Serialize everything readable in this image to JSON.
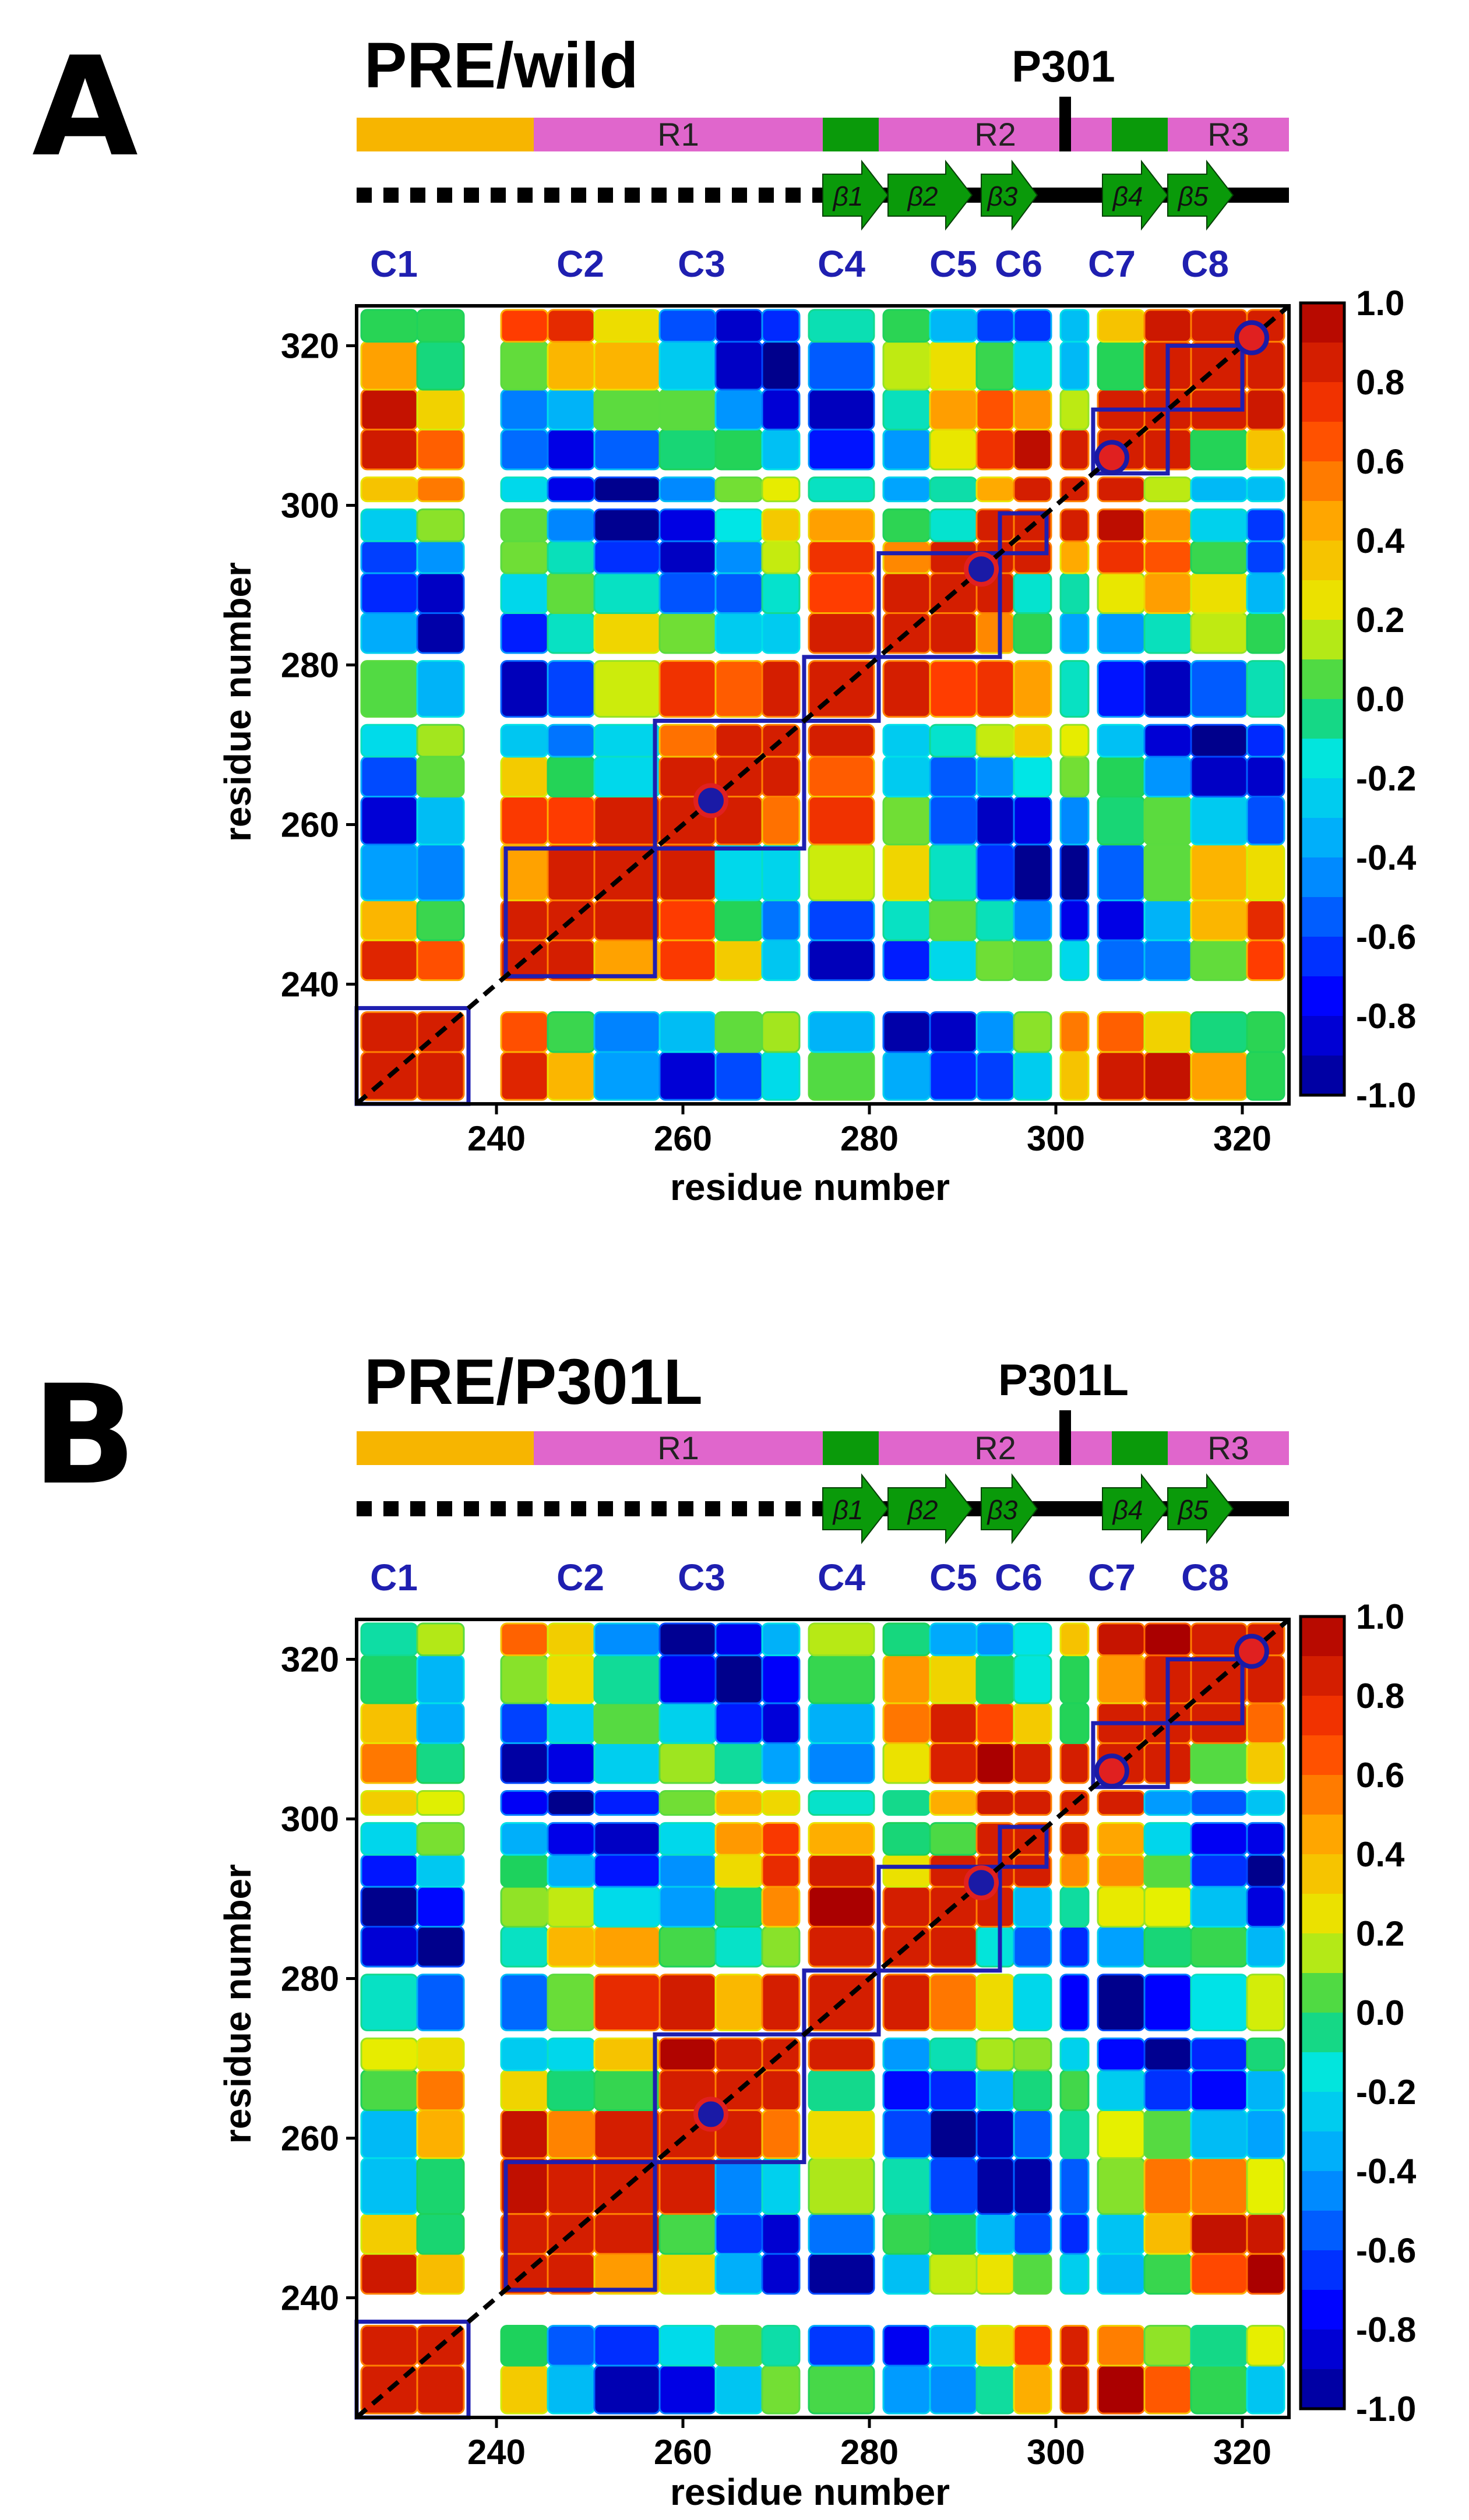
{
  "chart_data": [
    {
      "type": "heatmap",
      "panel": "A",
      "title": "PRE/wild",
      "mutation_label": "P301",
      "mutation_color": "#000000",
      "xlabel": "residue number",
      "ylabel": "residue number",
      "xlim": [
        225,
        325
      ],
      "ylim": [
        225,
        325
      ],
      "xticks": [
        240,
        260,
        280,
        300,
        320
      ],
      "yticks": [
        240,
        260,
        280,
        300,
        320
      ],
      "colorbar": {
        "min": -1.0,
        "max": 1.0,
        "ticks": [
          "1.0",
          "0.8",
          "0.6",
          "0.4",
          "0.2",
          "0.0",
          "-0.2",
          "-0.4",
          "-0.6",
          "-0.8",
          "-1.0"
        ]
      },
      "segments": [
        {
          "label": "",
          "start": 225,
          "end": 244,
          "color": "#f7b500"
        },
        {
          "label": "R1",
          "start": 244,
          "end": 275,
          "color": "#e066cc"
        },
        {
          "label": "",
          "start": 275,
          "end": 281,
          "color": "#0a9a0a"
        },
        {
          "label": "R2",
          "start": 281,
          "end": 306,
          "color": "#e066cc"
        },
        {
          "label": "",
          "start": 306,
          "end": 312,
          "color": "#0a9a0a"
        },
        {
          "label": "R3",
          "start": 312,
          "end": 325,
          "color": "#e066cc"
        }
      ],
      "strands": [
        {
          "label": "β1",
          "start": 275,
          "end": 282
        },
        {
          "label": "β2",
          "start": 282,
          "end": 291
        },
        {
          "label": "β3",
          "start": 292,
          "end": 298
        },
        {
          "label": "β4",
          "start": 305,
          "end": 312
        },
        {
          "label": "β5",
          "start": 312,
          "end": 319
        }
      ],
      "clusters": [
        {
          "label": "C1",
          "start": 225,
          "end": 237,
          "label_x": 229
        },
        {
          "label": "C2",
          "start": 241,
          "end": 257,
          "label_x": 249
        },
        {
          "label": "C3",
          "start": 257,
          "end": 273,
          "label_x": 262
        },
        {
          "label": "C4",
          "start": 273,
          "end": 281,
          "label_x": 277
        },
        {
          "label": "C5",
          "start": 281,
          "end": 294,
          "label_x": 289
        },
        {
          "label": "C6",
          "start": 294,
          "end": 299,
          "label_x": 296
        },
        {
          "label": "C7",
          "start": 304,
          "end": 312,
          "label_x": 306
        },
        {
          "label": "C8",
          "start": 312,
          "end": 320,
          "label_x": 316
        }
      ],
      "markers": [
        {
          "residue": 263,
          "fill": "#1a1aa6",
          "edge": "#e02020"
        },
        {
          "residue": 292,
          "fill": "#1a1aa6",
          "edge": "#e02020"
        },
        {
          "residue": 306,
          "fill": "#e02020",
          "edge": "#1a1aa6"
        },
        {
          "residue": 321,
          "fill": "#e02020",
          "edge": "#1a1aa6"
        }
      ]
    },
    {
      "type": "heatmap",
      "panel": "B",
      "title": "PRE/P301L",
      "mutation_label": "P301L",
      "mutation_color": "#e02020",
      "xlabel": "residue number",
      "ylabel": "residue number",
      "xlim": [
        225,
        325
      ],
      "ylim": [
        225,
        325
      ],
      "xticks": [
        240,
        260,
        280,
        300,
        320
      ],
      "yticks": [
        240,
        260,
        280,
        300,
        320
      ],
      "colorbar": {
        "min": -1.0,
        "max": 1.0,
        "ticks": [
          "1.0",
          "0.8",
          "0.6",
          "0.4",
          "0.2",
          "0.0",
          "-0.2",
          "-0.4",
          "-0.6",
          "-0.8",
          "-1.0"
        ]
      },
      "segments": [
        {
          "label": "",
          "start": 225,
          "end": 244,
          "color": "#f7b500"
        },
        {
          "label": "R1",
          "start": 244,
          "end": 275,
          "color": "#e066cc"
        },
        {
          "label": "",
          "start": 275,
          "end": 281,
          "color": "#0a9a0a"
        },
        {
          "label": "R2",
          "start": 281,
          "end": 306,
          "color": "#e066cc"
        },
        {
          "label": "",
          "start": 306,
          "end": 312,
          "color": "#0a9a0a"
        },
        {
          "label": "R3",
          "start": 312,
          "end": 325,
          "color": "#e066cc"
        }
      ],
      "strands": [
        {
          "label": "β1",
          "start": 275,
          "end": 282
        },
        {
          "label": "β2",
          "start": 282,
          "end": 291
        },
        {
          "label": "β3",
          "start": 292,
          "end": 298
        },
        {
          "label": "β4",
          "start": 305,
          "end": 312
        },
        {
          "label": "β5",
          "start": 312,
          "end": 319
        }
      ],
      "clusters": [
        {
          "label": "C1",
          "start": 225,
          "end": 237,
          "label_x": 229
        },
        {
          "label": "C2",
          "start": 241,
          "end": 257,
          "label_x": 249
        },
        {
          "label": "C3",
          "start": 257,
          "end": 273,
          "label_x": 262
        },
        {
          "label": "C4",
          "start": 273,
          "end": 281,
          "label_x": 277
        },
        {
          "label": "C5",
          "start": 281,
          "end": 294,
          "label_x": 289
        },
        {
          "label": "C6",
          "start": 294,
          "end": 299,
          "label_x": 296
        },
        {
          "label": "C7",
          "start": 304,
          "end": 312,
          "label_x": 306
        },
        {
          "label": "C8",
          "start": 312,
          "end": 320,
          "label_x": 316
        }
      ],
      "markers": [
        {
          "residue": 263,
          "fill": "#1a1aa6",
          "edge": "#e02020"
        },
        {
          "residue": 292,
          "fill": "#1a1aa6",
          "edge": "#e02020"
        },
        {
          "residue": 306,
          "fill": "#e02020",
          "edge": "#1a1aa6"
        },
        {
          "residue": 321,
          "fill": "#e02020",
          "edge": "#1a1aa6"
        }
      ]
    }
  ]
}
